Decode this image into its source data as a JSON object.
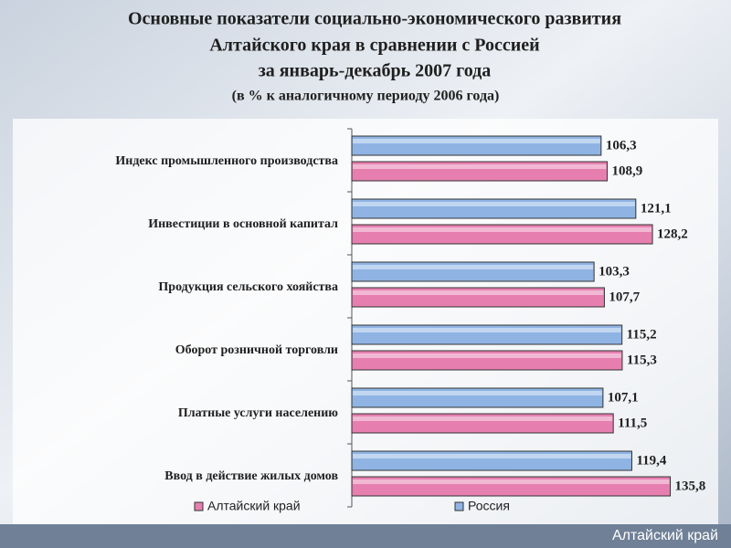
{
  "chart_data": {
    "type": "hbar",
    "title": [
      "Основные показатели социально-экономического развития",
      "Алтайского края в сравнении с Россией",
      "за январь-декабрь 2007 года"
    ],
    "subtitle": "(в % к аналогичному периоду 2006  года)",
    "categories": [
      "Индекс промышленного производства",
      "Инвестиции в основной капитал",
      "Продукция сельского хояйства",
      "Оборот розничной торговли",
      "Платные услуги населению",
      "Ввод в действие жилых домов"
    ],
    "series": [
      {
        "name": "Россия",
        "color": "#8fb4e3",
        "values": [
          106.3,
          121.1,
          103.3,
          115.2,
          107.1,
          119.4
        ],
        "value_labels": [
          "106,3",
          "121,1",
          "103,3",
          "115,2",
          "107,1",
          "119,4"
        ]
      },
      {
        "name": "Алтайский край",
        "color": "#e67fb0",
        "values": [
          108.9,
          128.2,
          107.7,
          115.3,
          111.5,
          135.8
        ],
        "value_labels": [
          "108,9",
          "128,2",
          "107,7",
          "115,3",
          "111,5",
          "135,8"
        ]
      }
    ],
    "xlim": [
      0,
      150
    ],
    "legend": "bottom"
  },
  "footer": "Алтайский край"
}
